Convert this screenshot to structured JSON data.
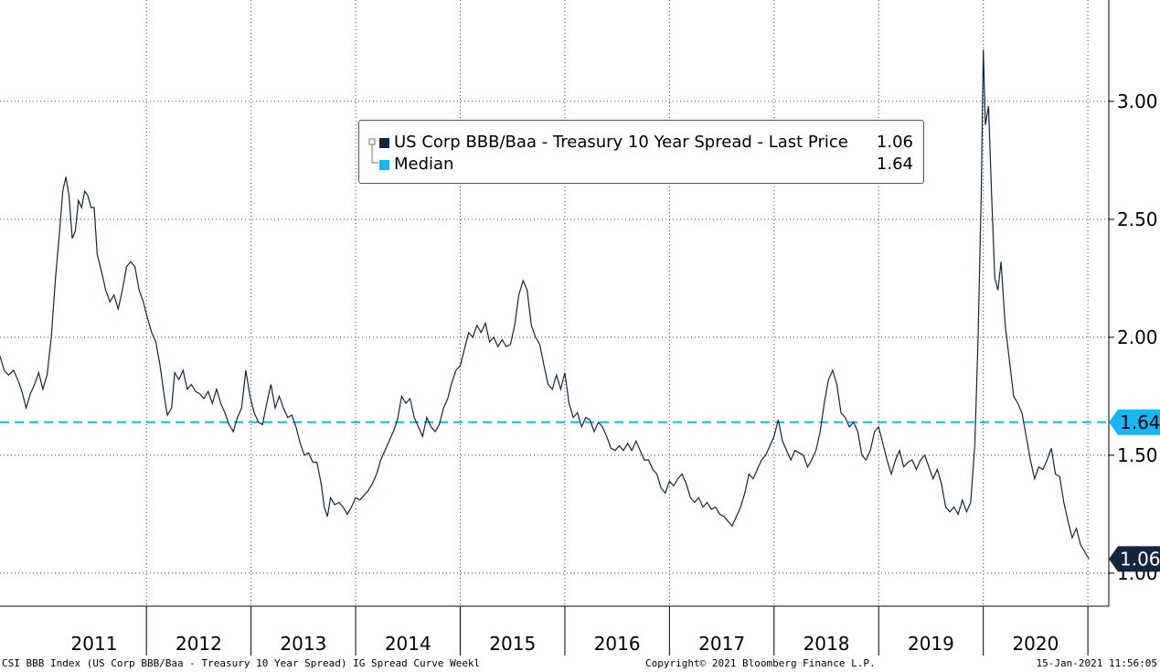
{
  "chart_data": {
    "type": "line",
    "legend": [
      {
        "label": "US Corp BBB/Baa - Treasury 10 Year Spread - Last Price",
        "value": "1.06",
        "color": "#14263d"
      },
      {
        "label": "Median",
        "value": "1.64",
        "color": "#17b7f5"
      }
    ],
    "x_tick_labels": [
      "2011",
      "2012",
      "2013",
      "2014",
      "2015",
      "2016",
      "2017",
      "2018",
      "2019",
      "2020"
    ],
    "y_tick_labels": [
      "1.00",
      "1.50",
      "2.00",
      "2.50",
      "3.00"
    ],
    "ylim": [
      0.86,
      3.43
    ],
    "xlim": [
      2010.6,
      2021.2
    ],
    "grid": true,
    "median_value": 1.64,
    "last_value": 1.06,
    "median_label": "1.64",
    "last_label": "1.06",
    "series": [
      {
        "points": [
          [
            2010.6,
            1.92
          ],
          [
            2010.64,
            1.86
          ],
          [
            2010.68,
            1.84
          ],
          [
            2010.73,
            1.86
          ],
          [
            2010.77,
            1.82
          ],
          [
            2010.81,
            1.77
          ],
          [
            2010.85,
            1.7
          ],
          [
            2010.89,
            1.76
          ],
          [
            2010.93,
            1.8
          ],
          [
            2010.97,
            1.85
          ],
          [
            2011.01,
            1.78
          ],
          [
            2011.05,
            1.84
          ],
          [
            2011.09,
            2.0
          ],
          [
            2011.13,
            2.25
          ],
          [
            2011.17,
            2.45
          ],
          [
            2011.2,
            2.62
          ],
          [
            2011.23,
            2.68
          ],
          [
            2011.26,
            2.6
          ],
          [
            2011.29,
            2.42
          ],
          [
            2011.32,
            2.45
          ],
          [
            2011.35,
            2.58
          ],
          [
            2011.38,
            2.55
          ],
          [
            2011.41,
            2.62
          ],
          [
            2011.44,
            2.6
          ],
          [
            2011.47,
            2.55
          ],
          [
            2011.5,
            2.55
          ],
          [
            2011.53,
            2.35
          ],
          [
            2011.57,
            2.28
          ],
          [
            2011.61,
            2.2
          ],
          [
            2011.65,
            2.15
          ],
          [
            2011.69,
            2.18
          ],
          [
            2011.73,
            2.12
          ],
          [
            2011.77,
            2.2
          ],
          [
            2011.81,
            2.3
          ],
          [
            2011.85,
            2.32
          ],
          [
            2011.89,
            2.3
          ],
          [
            2011.93,
            2.2
          ],
          [
            2011.97,
            2.15
          ],
          [
            2012.01,
            2.08
          ],
          [
            2012.05,
            2.02
          ],
          [
            2012.09,
            1.98
          ],
          [
            2012.13,
            1.88
          ],
          [
            2012.17,
            1.75
          ],
          [
            2012.2,
            1.67
          ],
          [
            2012.24,
            1.7
          ],
          [
            2012.27,
            1.85
          ],
          [
            2012.31,
            1.82
          ],
          [
            2012.35,
            1.86
          ],
          [
            2012.39,
            1.78
          ],
          [
            2012.43,
            1.8
          ],
          [
            2012.47,
            1.77
          ],
          [
            2012.51,
            1.76
          ],
          [
            2012.55,
            1.74
          ],
          [
            2012.59,
            1.77
          ],
          [
            2012.63,
            1.72
          ],
          [
            2012.67,
            1.78
          ],
          [
            2012.71,
            1.72
          ],
          [
            2012.75,
            1.68
          ],
          [
            2012.79,
            1.63
          ],
          [
            2012.83,
            1.6
          ],
          [
            2012.87,
            1.66
          ],
          [
            2012.91,
            1.7
          ],
          [
            2012.95,
            1.86
          ],
          [
            2012.99,
            1.75
          ],
          [
            2013.03,
            1.68
          ],
          [
            2013.07,
            1.64
          ],
          [
            2013.11,
            1.63
          ],
          [
            2013.15,
            1.72
          ],
          [
            2013.19,
            1.8
          ],
          [
            2013.23,
            1.7
          ],
          [
            2013.27,
            1.75
          ],
          [
            2013.31,
            1.7
          ],
          [
            2013.35,
            1.66
          ],
          [
            2013.39,
            1.67
          ],
          [
            2013.43,
            1.62
          ],
          [
            2013.47,
            1.55
          ],
          [
            2013.51,
            1.5
          ],
          [
            2013.55,
            1.51
          ],
          [
            2013.59,
            1.47
          ],
          [
            2013.63,
            1.47
          ],
          [
            2013.67,
            1.38
          ],
          [
            2013.7,
            1.28
          ],
          [
            2013.73,
            1.24
          ],
          [
            2013.76,
            1.32
          ],
          [
            2013.8,
            1.29
          ],
          [
            2013.84,
            1.3
          ],
          [
            2013.88,
            1.28
          ],
          [
            2013.92,
            1.25
          ],
          [
            2013.96,
            1.28
          ],
          [
            2014.0,
            1.32
          ],
          [
            2014.04,
            1.31
          ],
          [
            2014.08,
            1.33
          ],
          [
            2014.12,
            1.35
          ],
          [
            2014.16,
            1.38
          ],
          [
            2014.2,
            1.42
          ],
          [
            2014.24,
            1.48
          ],
          [
            2014.28,
            1.52
          ],
          [
            2014.32,
            1.56
          ],
          [
            2014.36,
            1.6
          ],
          [
            2014.4,
            1.65
          ],
          [
            2014.44,
            1.75
          ],
          [
            2014.48,
            1.72
          ],
          [
            2014.52,
            1.74
          ],
          [
            2014.56,
            1.66
          ],
          [
            2014.6,
            1.62
          ],
          [
            2014.64,
            1.58
          ],
          [
            2014.68,
            1.66
          ],
          [
            2014.72,
            1.62
          ],
          [
            2014.76,
            1.6
          ],
          [
            2014.8,
            1.63
          ],
          [
            2014.84,
            1.7
          ],
          [
            2014.88,
            1.74
          ],
          [
            2014.92,
            1.81
          ],
          [
            2014.96,
            1.86
          ],
          [
            2015.0,
            1.88
          ],
          [
            2015.04,
            1.95
          ],
          [
            2015.08,
            2.02
          ],
          [
            2015.12,
            2.0
          ],
          [
            2015.16,
            2.05
          ],
          [
            2015.2,
            2.02
          ],
          [
            2015.24,
            2.06
          ],
          [
            2015.28,
            1.98
          ],
          [
            2015.32,
            2.0
          ],
          [
            2015.36,
            1.96
          ],
          [
            2015.4,
            1.99
          ],
          [
            2015.44,
            1.96
          ],
          [
            2015.48,
            1.97
          ],
          [
            2015.52,
            2.05
          ],
          [
            2015.56,
            2.18
          ],
          [
            2015.6,
            2.24
          ],
          [
            2015.64,
            2.2
          ],
          [
            2015.68,
            2.05
          ],
          [
            2015.72,
            2.0
          ],
          [
            2015.76,
            1.97
          ],
          [
            2015.8,
            1.88
          ],
          [
            2015.84,
            1.8
          ],
          [
            2015.88,
            1.78
          ],
          [
            2015.92,
            1.84
          ],
          [
            2015.96,
            1.78
          ],
          [
            2016.0,
            1.85
          ],
          [
            2016.04,
            1.72
          ],
          [
            2016.08,
            1.66
          ],
          [
            2016.12,
            1.68
          ],
          [
            2016.16,
            1.62
          ],
          [
            2016.2,
            1.66
          ],
          [
            2016.24,
            1.65
          ],
          [
            2016.28,
            1.6
          ],
          [
            2016.32,
            1.64
          ],
          [
            2016.36,
            1.62
          ],
          [
            2016.4,
            1.58
          ],
          [
            2016.44,
            1.53
          ],
          [
            2016.48,
            1.52
          ],
          [
            2016.52,
            1.54
          ],
          [
            2016.56,
            1.52
          ],
          [
            2016.6,
            1.55
          ],
          [
            2016.64,
            1.52
          ],
          [
            2016.68,
            1.56
          ],
          [
            2016.72,
            1.52
          ],
          [
            2016.76,
            1.48
          ],
          [
            2016.8,
            1.48
          ],
          [
            2016.84,
            1.44
          ],
          [
            2016.88,
            1.42
          ],
          [
            2016.92,
            1.36
          ],
          [
            2016.96,
            1.34
          ],
          [
            2017.0,
            1.39
          ],
          [
            2017.04,
            1.37
          ],
          [
            2017.08,
            1.4
          ],
          [
            2017.12,
            1.42
          ],
          [
            2017.16,
            1.38
          ],
          [
            2017.2,
            1.32
          ],
          [
            2017.24,
            1.3
          ],
          [
            2017.28,
            1.32
          ],
          [
            2017.32,
            1.28
          ],
          [
            2017.36,
            1.3
          ],
          [
            2017.4,
            1.27
          ],
          [
            2017.44,
            1.28
          ],
          [
            2017.48,
            1.25
          ],
          [
            2017.52,
            1.24
          ],
          [
            2017.56,
            1.22
          ],
          [
            2017.6,
            1.2
          ],
          [
            2017.64,
            1.24
          ],
          [
            2017.68,
            1.28
          ],
          [
            2017.72,
            1.34
          ],
          [
            2017.76,
            1.42
          ],
          [
            2017.8,
            1.4
          ],
          [
            2017.84,
            1.44
          ],
          [
            2017.88,
            1.48
          ],
          [
            2017.92,
            1.5
          ],
          [
            2017.96,
            1.54
          ],
          [
            2018.0,
            1.58
          ],
          [
            2018.04,
            1.65
          ],
          [
            2018.08,
            1.56
          ],
          [
            2018.12,
            1.52
          ],
          [
            2018.16,
            1.48
          ],
          [
            2018.2,
            1.52
          ],
          [
            2018.24,
            1.51
          ],
          [
            2018.28,
            1.5
          ],
          [
            2018.32,
            1.45
          ],
          [
            2018.36,
            1.48
          ],
          [
            2018.4,
            1.52
          ],
          [
            2018.44,
            1.6
          ],
          [
            2018.48,
            1.72
          ],
          [
            2018.52,
            1.82
          ],
          [
            2018.56,
            1.86
          ],
          [
            2018.6,
            1.8
          ],
          [
            2018.64,
            1.68
          ],
          [
            2018.68,
            1.66
          ],
          [
            2018.72,
            1.62
          ],
          [
            2018.76,
            1.64
          ],
          [
            2018.8,
            1.6
          ],
          [
            2018.84,
            1.5
          ],
          [
            2018.88,
            1.48
          ],
          [
            2018.92,
            1.52
          ],
          [
            2018.96,
            1.6
          ],
          [
            2019.0,
            1.62
          ],
          [
            2019.04,
            1.55
          ],
          [
            2019.08,
            1.48
          ],
          [
            2019.12,
            1.42
          ],
          [
            2019.16,
            1.48
          ],
          [
            2019.2,
            1.52
          ],
          [
            2019.24,
            1.45
          ],
          [
            2019.28,
            1.47
          ],
          [
            2019.32,
            1.48
          ],
          [
            2019.36,
            1.44
          ],
          [
            2019.4,
            1.48
          ],
          [
            2019.44,
            1.5
          ],
          [
            2019.48,
            1.45
          ],
          [
            2019.52,
            1.4
          ],
          [
            2019.56,
            1.44
          ],
          [
            2019.6,
            1.38
          ],
          [
            2019.64,
            1.28
          ],
          [
            2019.68,
            1.26
          ],
          [
            2019.72,
            1.28
          ],
          [
            2019.76,
            1.25
          ],
          [
            2019.8,
            1.31
          ],
          [
            2019.84,
            1.26
          ],
          [
            2019.88,
            1.3
          ],
          [
            2019.92,
            1.55
          ],
          [
            2019.95,
            2.0
          ],
          [
            2019.98,
            2.6
          ],
          [
            2020.0,
            3.22
          ],
          [
            2020.02,
            2.9
          ],
          [
            2020.05,
            2.98
          ],
          [
            2020.08,
            2.6
          ],
          [
            2020.11,
            2.25
          ],
          [
            2020.14,
            2.2
          ],
          [
            2020.17,
            2.32
          ],
          [
            2020.21,
            2.05
          ],
          [
            2020.25,
            1.9
          ],
          [
            2020.29,
            1.75
          ],
          [
            2020.33,
            1.72
          ],
          [
            2020.37,
            1.68
          ],
          [
            2020.41,
            1.58
          ],
          [
            2020.45,
            1.48
          ],
          [
            2020.49,
            1.4
          ],
          [
            2020.53,
            1.45
          ],
          [
            2020.57,
            1.44
          ],
          [
            2020.61,
            1.48
          ],
          [
            2020.65,
            1.53
          ],
          [
            2020.69,
            1.42
          ],
          [
            2020.73,
            1.41
          ],
          [
            2020.77,
            1.3
          ],
          [
            2020.81,
            1.22
          ],
          [
            2020.85,
            1.15
          ],
          [
            2020.89,
            1.19
          ],
          [
            2020.93,
            1.12
          ],
          [
            2020.97,
            1.09
          ],
          [
            2021.01,
            1.06
          ]
        ]
      }
    ]
  },
  "footer": {
    "left": "CSI BBB Index (US Corp BBB/Baa - Treasury 10 Year Spread) IG Spread Curve  Weekl",
    "middle": "Copyright© 2021 Bloomberg Finance L.P.",
    "right": "15-Jan-2021 11:56:05"
  }
}
